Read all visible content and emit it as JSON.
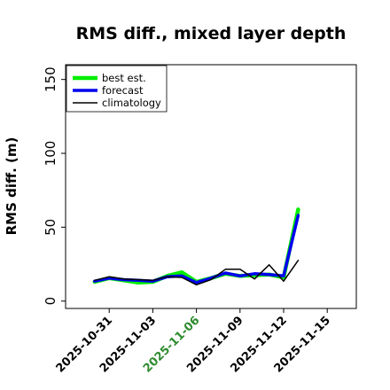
{
  "chart_data": {
    "type": "line",
    "title": "RMS diff., mixed layer depth",
    "xlabel": "",
    "ylabel": "RMS diff. (m)",
    "xlim": [
      "2025-10-28",
      "2025-11-17"
    ],
    "ylim": [
      -5,
      160
    ],
    "yticks": [
      0,
      50,
      100,
      150
    ],
    "xticks": [
      "2025-10-31",
      "2025-11-03",
      "2025-11-06",
      "2025-11-09",
      "2025-11-12",
      "2025-11-15"
    ],
    "highlighted_tick": "2025-11-06",
    "highlight_color": "#2e8b2e",
    "grid": false,
    "legend_position": "top-left",
    "series": [
      {
        "name": "best est.",
        "color": "#00ee00",
        "x": [
          "2025-10-30",
          "2025-10-31",
          "2025-11-01",
          "2025-11-02",
          "2025-11-03",
          "2025-11-04",
          "2025-11-05",
          "2025-11-06",
          "2025-11-07",
          "2025-11-08",
          "2025-11-09",
          "2025-11-10",
          "2025-11-11",
          "2025-11-12",
          "2025-11-13"
        ],
        "values": [
          13,
          15.5,
          14,
          12.5,
          13,
          17,
          19.5,
          13,
          15.5,
          18.5,
          17,
          17.5,
          18,
          16,
          62
        ]
      },
      {
        "name": "forecast",
        "color": "#0000ee",
        "x": [
          "2025-10-30",
          "2025-10-31",
          "2025-11-01",
          "2025-11-02",
          "2025-11-03",
          "2025-11-04",
          "2025-11-05",
          "2025-11-06",
          "2025-11-07",
          "2025-11-08",
          "2025-11-09",
          "2025-11-10",
          "2025-11-11",
          "2025-11-12",
          "2025-11-13"
        ],
        "values": [
          13.5,
          15.5,
          14.5,
          14,
          13.5,
          16.5,
          17,
          12.5,
          15.5,
          19,
          17,
          18.5,
          18,
          17,
          58
        ]
      },
      {
        "name": "climatology",
        "color": "#000000",
        "x": [
          "2025-10-30",
          "2025-10-31",
          "2025-11-01",
          "2025-11-02",
          "2025-11-03",
          "2025-11-04",
          "2025-11-05",
          "2025-11-06",
          "2025-11-07",
          "2025-11-08",
          "2025-11-09",
          "2025-11-10",
          "2025-11-11",
          "2025-11-12",
          "2025-11-13"
        ],
        "values": [
          14,
          16.5,
          15,
          14.5,
          14,
          16.5,
          16,
          11,
          14.5,
          21.5,
          21.5,
          15,
          24.5,
          13.5,
          27.5
        ]
      }
    ]
  }
}
